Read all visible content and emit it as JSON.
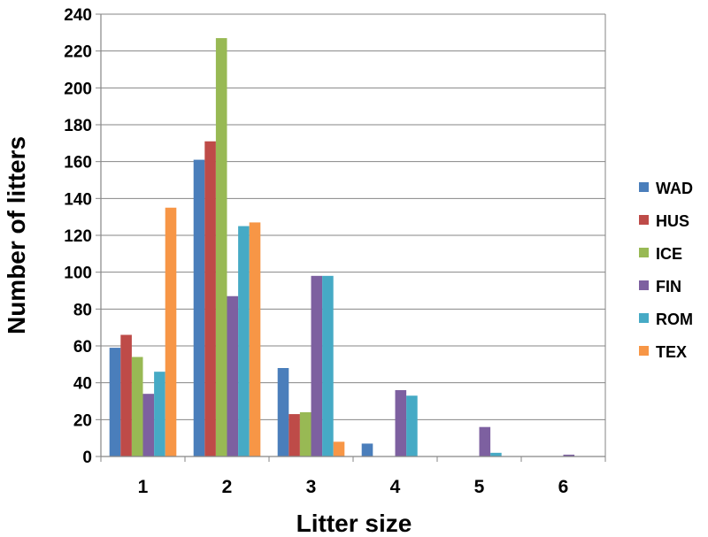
{
  "chart_data": {
    "type": "bar",
    "title": "",
    "xlabel": "Litter size",
    "ylabel": "Number of litters",
    "categories": [
      "1",
      "2",
      "3",
      "4",
      "5",
      "6"
    ],
    "ylim": [
      0,
      240
    ],
    "yticks": [
      0,
      20,
      40,
      60,
      80,
      100,
      120,
      140,
      160,
      180,
      200,
      220,
      240
    ],
    "grid": true,
    "legend_position": "right",
    "series": [
      {
        "name": "WAD",
        "color": "#4a7ebb",
        "values": [
          59,
          161,
          48,
          7,
          0,
          0
        ]
      },
      {
        "name": "HUS",
        "color": "#be4b48",
        "values": [
          66,
          171,
          23,
          0,
          0,
          0
        ]
      },
      {
        "name": "ICE",
        "color": "#98b954",
        "values": [
          54,
          227,
          24,
          0,
          0,
          0
        ]
      },
      {
        "name": "FIN",
        "color": "#7d60a0",
        "values": [
          34,
          87,
          98,
          36,
          16,
          1
        ]
      },
      {
        "name": "ROM",
        "color": "#46aac5",
        "values": [
          46,
          125,
          98,
          33,
          2,
          0
        ]
      },
      {
        "name": "TEX",
        "color": "#f79646",
        "values": [
          135,
          127,
          8,
          0,
          0,
          0
        ]
      }
    ]
  }
}
